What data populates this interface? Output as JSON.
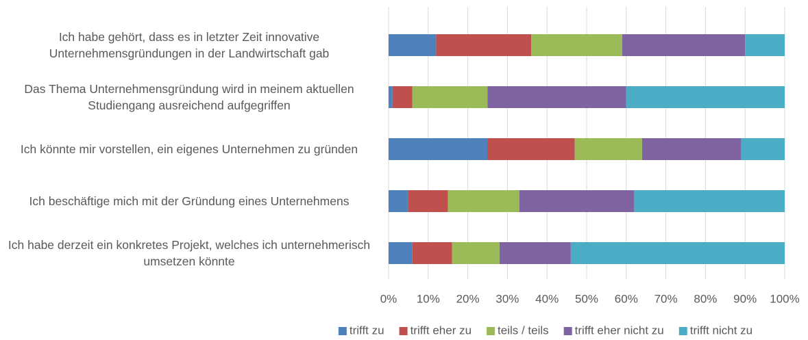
{
  "chart_data": {
    "type": "stacked-bar-horizontal",
    "categories": [
      "Ich habe gehört, dass es in letzter Zeit innovative Unternehmensgründungen in der Landwirtschaft gab",
      "Das Thema Unternehmensgründung wird in meinem aktuellen Studiengang ausreichend aufgegriffen",
      "Ich könnte mir vorstellen, ein eigenes Unternehmen zu gründen",
      "Ich beschäftige mich mit der Gründung eines Unternehmens",
      "Ich habe derzeit ein konkretes Projekt, welches ich unternehmerisch umsetzen könnte"
    ],
    "series": [
      {
        "name": "trifft zu",
        "color": "#4f81bd",
        "values": [
          12,
          1,
          25,
          5,
          6
        ]
      },
      {
        "name": "trifft eher zu",
        "color": "#c0504d",
        "values": [
          24,
          5,
          22,
          10,
          10
        ]
      },
      {
        "name": "teils / teils",
        "color": "#9bbb59",
        "values": [
          23,
          19,
          17,
          18,
          12
        ]
      },
      {
        "name": "trifft eher nicht zu",
        "color": "#8064a2",
        "values": [
          31,
          35,
          25,
          29,
          18
        ]
      },
      {
        "name": "trifft nicht zu",
        "color": "#4bacc6",
        "values": [
          10,
          40,
          11,
          38,
          54
        ]
      }
    ],
    "xlim": [
      0,
      100
    ],
    "xticks": [
      {
        "value": 0,
        "label": "0%"
      },
      {
        "value": 10,
        "label": "10%"
      },
      {
        "value": 20,
        "label": "20%"
      },
      {
        "value": 30,
        "label": "30%"
      },
      {
        "value": 40,
        "label": "40%"
      },
      {
        "value": 50,
        "label": "50%"
      },
      {
        "value": 60,
        "label": "60%"
      },
      {
        "value": 70,
        "label": "70%"
      },
      {
        "value": 80,
        "label": "80%"
      },
      {
        "value": 90,
        "label": "90%"
      },
      {
        "value": 100,
        "label": "100%"
      }
    ],
    "grid": true,
    "legend": "bottom"
  }
}
